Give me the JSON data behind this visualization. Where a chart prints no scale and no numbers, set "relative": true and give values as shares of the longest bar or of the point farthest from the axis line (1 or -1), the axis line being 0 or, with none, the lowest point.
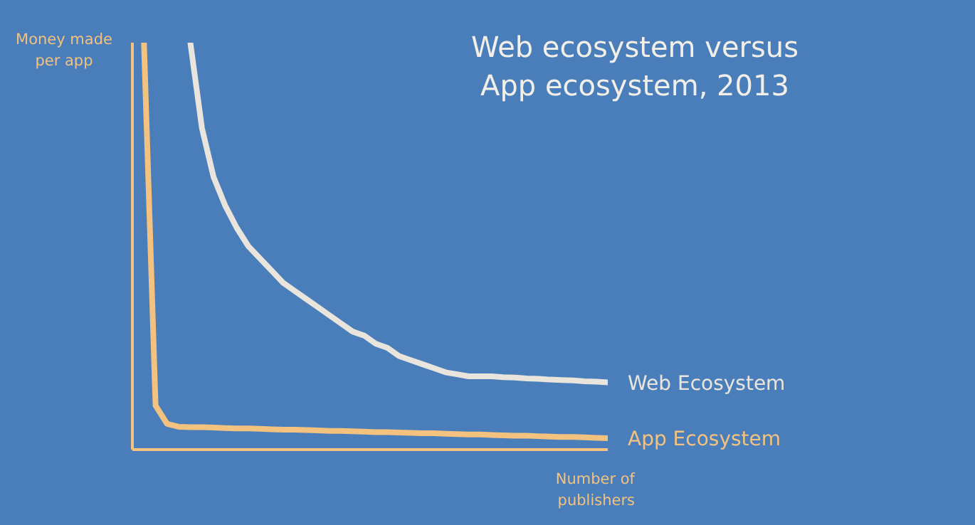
{
  "chart_data": {
    "type": "line",
    "title": "Web ecosystem versus App ecosystem, 2013",
    "xlabel": "Number of publishers",
    "ylabel": "Money made per app",
    "relative": true,
    "legend": false,
    "grid": false,
    "marker": "none",
    "categories": [
      null,
      null,
      null,
      null,
      null,
      null,
      null,
      null,
      null,
      null,
      null,
      null,
      null,
      null,
      null,
      null,
      null,
      null,
      null,
      null,
      null,
      null,
      null,
      null,
      null,
      null,
      null,
      null,
      null,
      null,
      null,
      null,
      null,
      null,
      null,
      null,
      null,
      null,
      null,
      null,
      null,
      null
    ],
    "series": [
      {
        "name": "Web Ecosystem",
        "color": "#e9e5dc",
        "values": [
          null,
          null,
          null,
          null,
          null,
          1.0,
          0.79,
          0.67,
          0.6,
          0.545,
          0.5,
          0.47,
          0.44,
          0.41,
          0.39,
          0.37,
          0.35,
          0.33,
          0.31,
          0.29,
          0.28,
          0.26,
          0.25,
          0.23,
          0.22,
          0.21,
          0.2,
          0.19,
          0.185,
          0.18,
          0.18,
          0.18,
          0.178,
          0.177,
          0.175,
          0.174,
          0.172,
          0.171,
          0.17,
          0.168,
          0.167,
          0.165
        ]
      },
      {
        "name": "App Ecosystem",
        "color": "#f2c27e",
        "values": [
          null,
          1.0,
          0.108,
          0.063,
          0.056,
          0.055,
          0.055,
          0.054,
          0.053,
          0.052,
          0.052,
          0.051,
          0.05,
          0.049,
          0.049,
          0.048,
          0.047,
          0.046,
          0.046,
          0.045,
          0.044,
          0.043,
          0.043,
          0.042,
          0.041,
          0.04,
          0.04,
          0.039,
          0.038,
          0.037,
          0.037,
          0.036,
          0.035,
          0.034,
          0.034,
          0.033,
          0.032,
          0.031,
          0.031,
          0.03,
          0.029,
          0.028
        ]
      }
    ]
  }
}
